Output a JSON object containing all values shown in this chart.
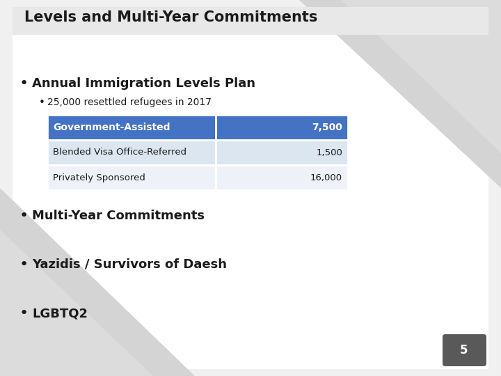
{
  "title": "Levels and Multi-Year Commitments",
  "slide_bg": "#e8e8e8",
  "content_bg": "#ffffff",
  "title_fontsize": 15,
  "title_color": "#1a1a1a",
  "bullet1_text": "Annual Immigration Levels Plan",
  "bullet1_fontsize": 13,
  "bullet2_text": "25,000 resettled refugees in 2017",
  "bullet2_fontsize": 10,
  "table_rows": [
    {
      "label": "Government-Assisted",
      "value": "7,500",
      "header": true
    },
    {
      "label": "Blended Visa Office-Referred",
      "value": "1,500",
      "header": false
    },
    {
      "label": "Privately Sponsored",
      "value": "16,000",
      "header": false
    }
  ],
  "table_header_bg": "#4472c4",
  "table_row1_bg": "#dce6f1",
  "table_row2_bg": "#eef2f8",
  "table_border_color": "#ffffff",
  "bullet3_text": "Multi-Year Commitments",
  "bullet3_fontsize": 13,
  "bullet4_text": "Yazidis / Survivors of Daesh",
  "bullet4_fontsize": 13,
  "bullet5_text": "LGBTQ2",
  "bullet5_fontsize": 13,
  "page_num": "5",
  "page_num_bg": "#595959",
  "bold_color": "#1a1a1a",
  "shape_color": "#d4d4d4",
  "shape_color2": "#c8c8c8"
}
